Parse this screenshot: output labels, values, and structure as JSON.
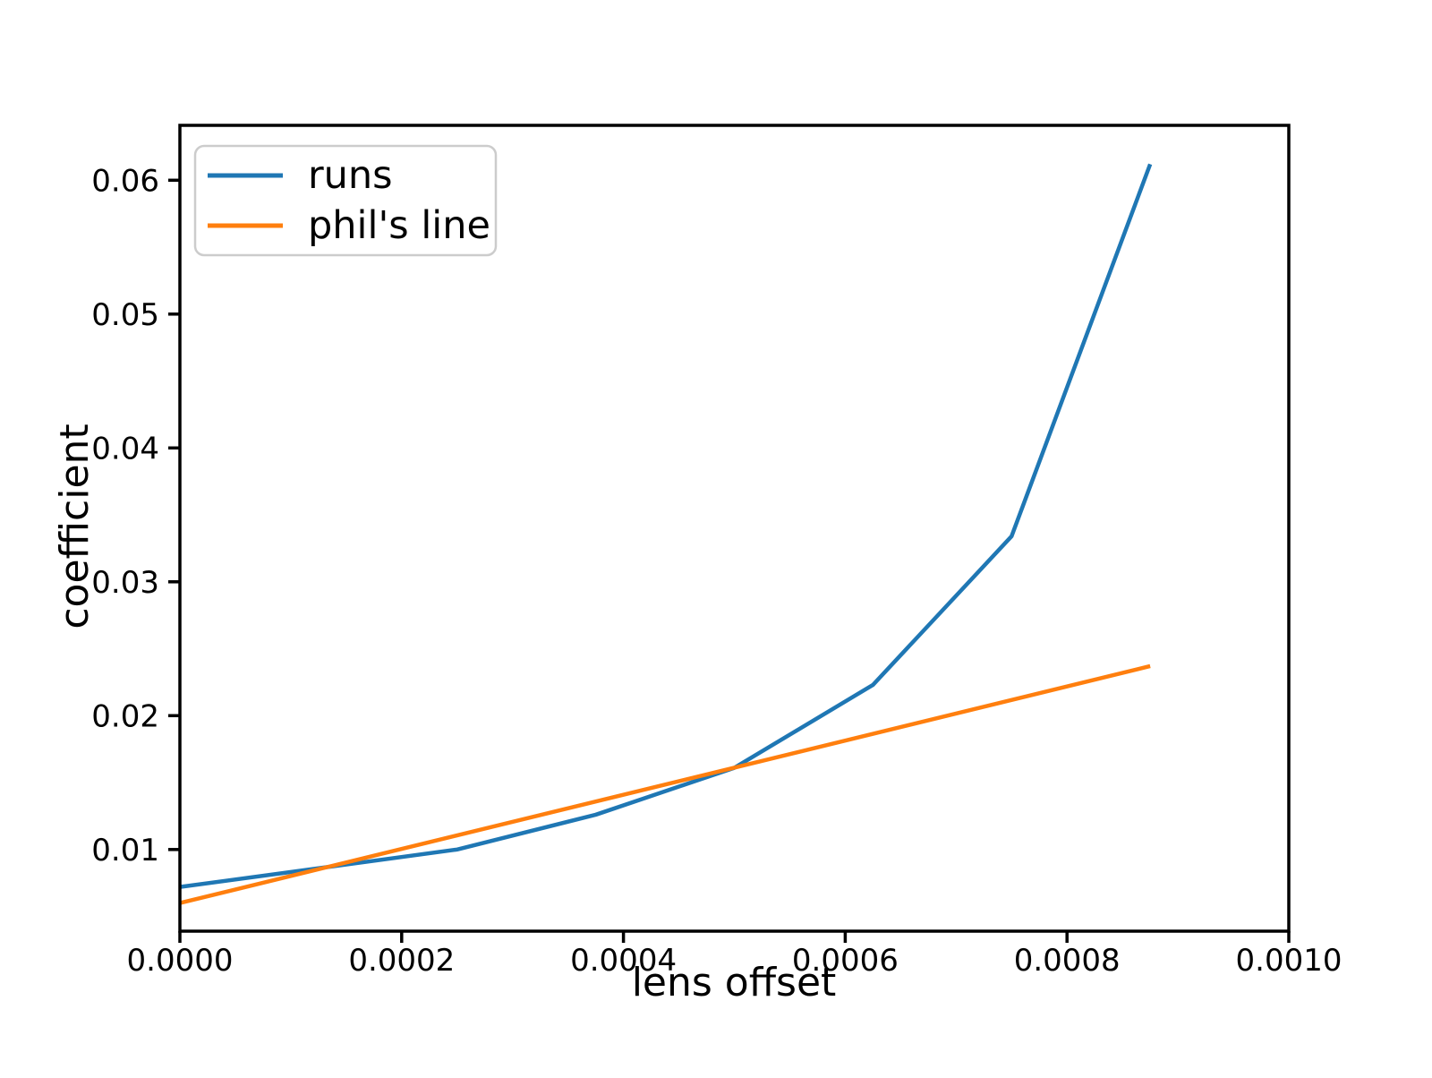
{
  "chart_data": {
    "type": "line",
    "title": "",
    "xlabel": "lens offset",
    "ylabel": "coefficient",
    "xlim": [
      0.0,
      0.001
    ],
    "ylim": [
      0.0039,
      0.0641
    ],
    "grid": false,
    "x_ticks": {
      "values": [
        0.0,
        0.0002,
        0.0004,
        0.0006,
        0.0008,
        0.001
      ],
      "labels": [
        "0.0000",
        "0.0002",
        "0.0004",
        "0.0006",
        "0.0008",
        "0.0010"
      ]
    },
    "y_ticks": {
      "values": [
        0.01,
        0.02,
        0.03,
        0.04,
        0.05,
        0.06
      ],
      "labels": [
        "0.01",
        "0.02",
        "0.03",
        "0.04",
        "0.05",
        "0.06"
      ]
    },
    "legend": {
      "position": "upper left",
      "entries": [
        "runs",
        "phil's line"
      ]
    },
    "series": [
      {
        "name": "runs",
        "color": "#1f77b4",
        "x": [
          0.0,
          0.000125,
          0.00025,
          0.000375,
          0.0005,
          0.000625,
          0.00075,
          0.000875
        ],
        "y": [
          0.0072,
          0.0086,
          0.01,
          0.0126,
          0.0161,
          0.0223,
          0.0334,
          0.0612
        ]
      },
      {
        "name": "phil's line",
        "color": "#ff7f0e",
        "x": [
          0.0,
          0.000875
        ],
        "y": [
          0.006,
          0.0237
        ]
      }
    ]
  }
}
